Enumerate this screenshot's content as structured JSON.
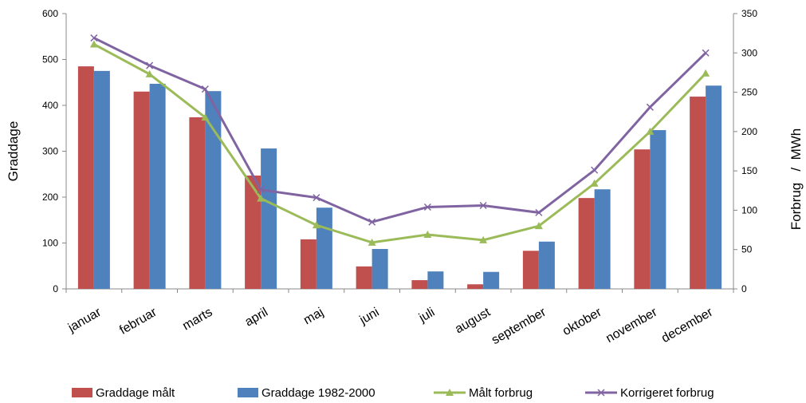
{
  "chart_data": {
    "type": "bar-line",
    "categories": [
      "januar",
      "februar",
      "marts",
      "april",
      "maj",
      "juni",
      "juli",
      "august",
      "september",
      "oktober",
      "november",
      "december"
    ],
    "ylabel": "Graddage",
    "y2label": "Forbrug   /  MWh",
    "ylim": [
      0,
      600
    ],
    "yticks": [
      0,
      100,
      200,
      300,
      400,
      500,
      600
    ],
    "y2lim": [
      0,
      350
    ],
    "y2ticks": [
      0,
      50,
      100,
      150,
      200,
      250,
      300,
      350
    ],
    "legend": "bottom",
    "grid": false,
    "series": [
      {
        "name": "Graddage målt",
        "type": "bar",
        "color": "#c0504d",
        "values": [
          485,
          430,
          374,
          247,
          108,
          49,
          19,
          10,
          83,
          198,
          304,
          419
        ]
      },
      {
        "name": "Graddage 1982-2000",
        "type": "bar",
        "color": "#4f81bd",
        "values": [
          475,
          447,
          431,
          306,
          177,
          87,
          38,
          37,
          103,
          217,
          346,
          443
        ]
      },
      {
        "name": "Målt forbrug",
        "type": "line",
        "marker": "triangle",
        "axis": "y2",
        "color": "#9bbb59",
        "values": [
          311,
          273,
          218,
          115,
          81,
          59,
          69,
          62,
          80,
          134,
          200,
          274
        ]
      },
      {
        "name": "Korrigeret forbrug",
        "type": "line",
        "marker": "x",
        "axis": "y2",
        "color": "#8064a2",
        "values": [
          319,
          284,
          254,
          126,
          116,
          85,
          104,
          106,
          97,
          151,
          231,
          300
        ]
      }
    ]
  }
}
